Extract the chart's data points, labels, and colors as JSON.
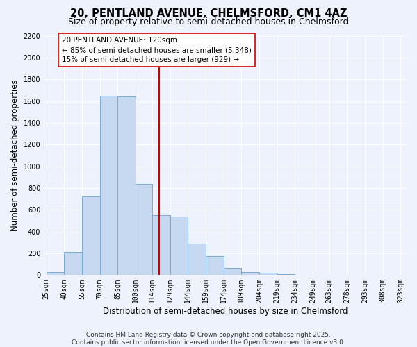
{
  "title": "20, PENTLAND AVENUE, CHELMSFORD, CM1 4AZ",
  "subtitle": "Size of property relative to semi-detached houses in Chelmsford",
  "xlabel": "Distribution of semi-detached houses by size in Chelmsford",
  "ylabel": "Number of semi-detached properties",
  "bin_labels": [
    "25sqm",
    "40sqm",
    "55sqm",
    "70sqm",
    "85sqm",
    "100sqm",
    "114sqm",
    "129sqm",
    "144sqm",
    "159sqm",
    "174sqm",
    "189sqm",
    "204sqm",
    "219sqm",
    "234sqm",
    "249sqm",
    "263sqm",
    "278sqm",
    "293sqm",
    "308sqm",
    "323sqm"
  ],
  "bin_edges": [
    25,
    40,
    55,
    70,
    85,
    100,
    114,
    129,
    144,
    159,
    174,
    189,
    204,
    219,
    234,
    249,
    263,
    278,
    293,
    308,
    323
  ],
  "bar_heights": [
    30,
    210,
    720,
    1650,
    1640,
    840,
    550,
    540,
    290,
    175,
    65,
    30,
    20,
    10,
    0,
    0,
    5,
    0,
    0,
    0
  ],
  "bar_color": "#c5d8f0",
  "bar_edge_color": "#7aaad4",
  "vline_x": 120,
  "vline_color": "#cc0000",
  "annotation_text": "20 PENTLAND AVENUE: 120sqm\n← 85% of semi-detached houses are smaller (5,348)\n15% of semi-detached houses are larger (929) →",
  "annotation_box_color": "#ffffff",
  "annotation_box_edge_color": "#cc0000",
  "ylim": [
    0,
    2200
  ],
  "yticks": [
    0,
    200,
    400,
    600,
    800,
    1000,
    1200,
    1400,
    1600,
    1800,
    2000,
    2200
  ],
  "footnote1": "Contains HM Land Registry data © Crown copyright and database right 2025.",
  "footnote2": "Contains public sector information licensed under the Open Government Licence v3.0.",
  "bg_color": "#eef2fc",
  "grid_color": "#ffffff",
  "title_fontsize": 10.5,
  "subtitle_fontsize": 9,
  "label_fontsize": 8.5,
  "tick_fontsize": 7,
  "footnote_fontsize": 6.5,
  "annot_fontsize": 7.5
}
